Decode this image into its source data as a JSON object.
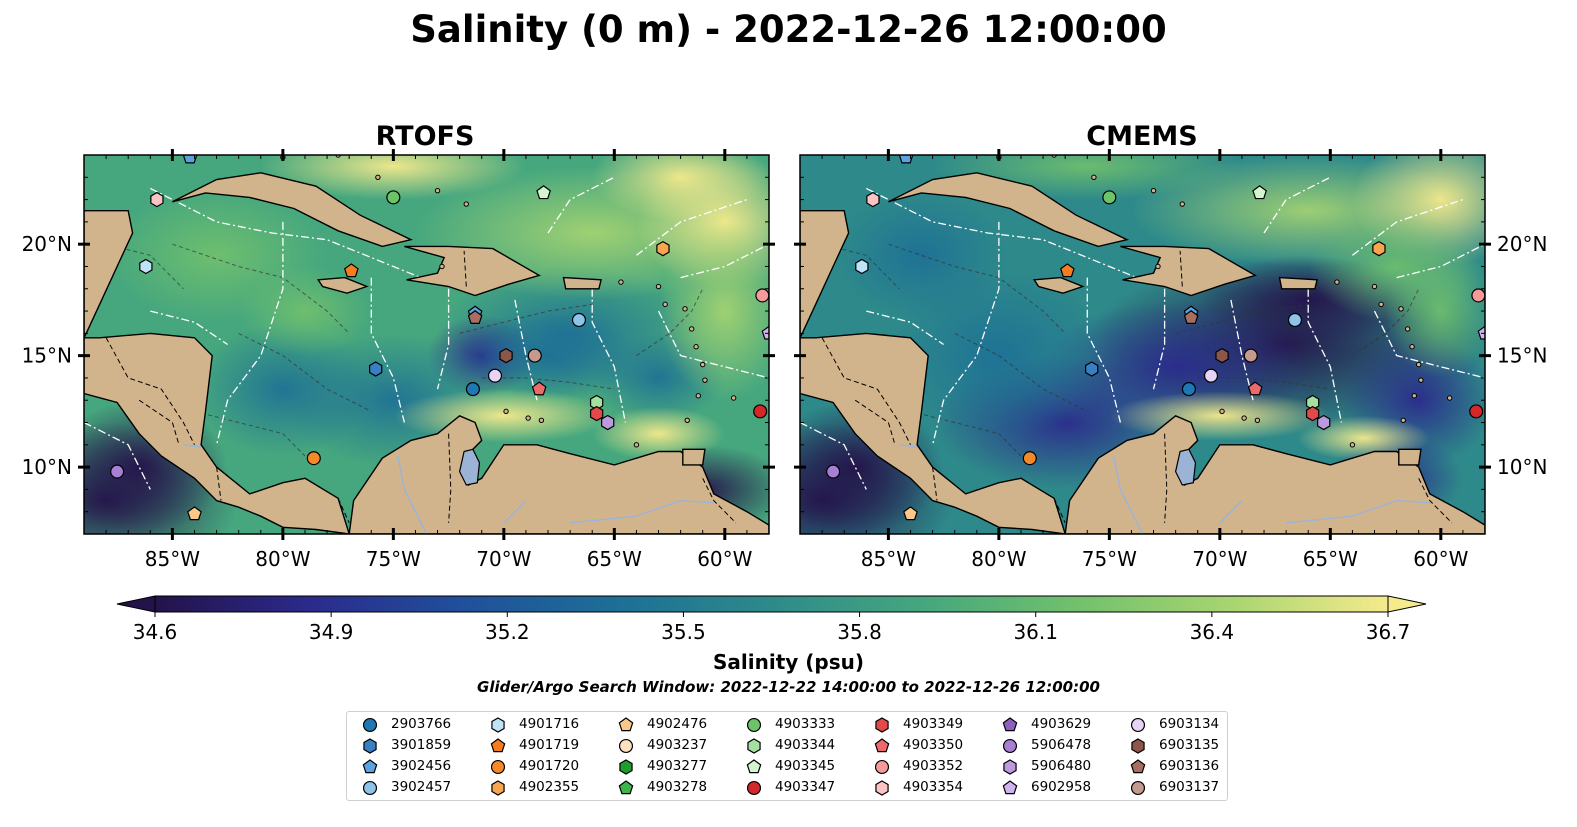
{
  "figure": {
    "title": "Salinity (0 m) - 2022-12-26 12:00:00",
    "search_window": "Glider/Argo Search Window: 2022-12-22 14:00:00 to 2022-12-26 12:00:00"
  },
  "panels": [
    {
      "title": "RTOFS",
      "model": "rtofs"
    },
    {
      "title": "CMEMS",
      "model": "cmems"
    }
  ],
  "axes": {
    "x_ticks": [
      "85°W",
      "80°W",
      "75°W",
      "70°W",
      "65°W",
      "60°W"
    ],
    "x_values": [
      -85,
      -80,
      -75,
      -70,
      -65,
      -60
    ],
    "y_ticks": [
      "20°N",
      "15°N",
      "10°N"
    ],
    "y_values": [
      20,
      15,
      10
    ],
    "lon_range": [
      -89,
      -58
    ],
    "lat_range": [
      7,
      24
    ]
  },
  "colors": {
    "land": "#d2b48c",
    "colormap": [
      "#24134a",
      "#2b2a8c",
      "#20509b",
      "#1d6f96",
      "#2e8a8a",
      "#46a77e",
      "#72c16c",
      "#a9d571",
      "#f5ea8c"
    ],
    "bathymetry_contours": "#333333",
    "eez_lines": "#ffffff",
    "rivers": "#9bb4d6"
  },
  "colorbar": {
    "label": "Salinity (psu)",
    "min": 34.6,
    "max": 36.7,
    "tick_labels": [
      "34.6",
      "34.9",
      "35.2",
      "35.5",
      "35.8",
      "36.1",
      "36.4",
      "36.7"
    ],
    "tick_values": [
      34.6,
      34.9,
      35.2,
      35.5,
      35.8,
      36.1,
      36.4,
      36.7
    ],
    "extend": "both"
  },
  "legend": {
    "columns": 7,
    "items": [
      {
        "id": "2903766",
        "marker": "circle",
        "color": "#1f77b4"
      },
      {
        "id": "3901859",
        "marker": "hexagon",
        "color": "#3a7fc4"
      },
      {
        "id": "3902456",
        "marker": "pentagon",
        "color": "#5aa2e0"
      },
      {
        "id": "3902457",
        "marker": "circle",
        "color": "#8ec3ea"
      },
      {
        "id": "4901716",
        "marker": "hexagon",
        "color": "#bfe3f7"
      },
      {
        "id": "4901719",
        "marker": "pentagon",
        "color": "#f57c1f"
      },
      {
        "id": "4901720",
        "marker": "circle",
        "color": "#f5892a"
      },
      {
        "id": "4902355",
        "marker": "hexagon",
        "color": "#f9a54f"
      },
      {
        "id": "4902476",
        "marker": "pentagon",
        "color": "#fbc88a"
      },
      {
        "id": "4903237",
        "marker": "circle",
        "color": "#fde0bf"
      },
      {
        "id": "4903277",
        "marker": "hexagon",
        "color": "#1f9e2c"
      },
      {
        "id": "4903278",
        "marker": "pentagon",
        "color": "#3cb64a"
      },
      {
        "id": "4903333",
        "marker": "circle",
        "color": "#6cc36a"
      },
      {
        "id": "4903344",
        "marker": "hexagon",
        "color": "#a5e0a0"
      },
      {
        "id": "4903345",
        "marker": "pentagon",
        "color": "#d3f5cf"
      },
      {
        "id": "4903347",
        "marker": "circle",
        "color": "#d62728"
      },
      {
        "id": "4903349",
        "marker": "hexagon",
        "color": "#e24a4a"
      },
      {
        "id": "4903350",
        "marker": "pentagon",
        "color": "#ec6a6a"
      },
      {
        "id": "4903352",
        "marker": "circle",
        "color": "#f59a9a"
      },
      {
        "id": "4903354",
        "marker": "hexagon",
        "color": "#fbc4c4"
      },
      {
        "id": "4903629",
        "marker": "pentagon",
        "color": "#8e5fbf"
      },
      {
        "id": "5906478",
        "marker": "circle",
        "color": "#a77fd3"
      },
      {
        "id": "5906480",
        "marker": "hexagon",
        "color": "#bb9ae0"
      },
      {
        "id": "6902958",
        "marker": "pentagon",
        "color": "#cfb4ee"
      },
      {
        "id": "6903134",
        "marker": "circle",
        "color": "#e7d3f6"
      },
      {
        "id": "6903135",
        "marker": "hexagon",
        "color": "#8c564b"
      },
      {
        "id": "6903136",
        "marker": "pentagon",
        "color": "#a86e62"
      },
      {
        "id": "6903137",
        "marker": "circle",
        "color": "#c49a8f"
      }
    ]
  },
  "floats": [
    {
      "id": "4903354",
      "lon": -85.7,
      "lat": 22.0
    },
    {
      "id": "3902456",
      "lon": -84.2,
      "lat": 23.9
    },
    {
      "id": "4903333",
      "lon": -75.0,
      "lat": 22.1
    },
    {
      "id": "4903345",
      "lon": -68.2,
      "lat": 22.3
    },
    {
      "id": "4902355",
      "lon": -62.8,
      "lat": 19.8
    },
    {
      "id": "4901716",
      "lon": -86.2,
      "lat": 19.0
    },
    {
      "id": "4901719",
      "lon": -76.9,
      "lat": 18.8
    },
    {
      "id": "4903352",
      "lon": -58.3,
      "lat": 17.7
    },
    {
      "id": "6902958",
      "lon": -58.0,
      "lat": 16.0
    },
    {
      "id": "3902456",
      "lon": -71.3,
      "lat": 16.9
    },
    {
      "id": "6903136",
      "lon": -71.3,
      "lat": 16.7
    },
    {
      "id": "3902457",
      "lon": -66.6,
      "lat": 16.6
    },
    {
      "id": "3901859",
      "lon": -75.8,
      "lat": 14.4
    },
    {
      "id": "6903135",
      "lon": -69.9,
      "lat": 15.0
    },
    {
      "id": "6903137",
      "lon": -68.6,
      "lat": 15.0
    },
    {
      "id": "6903134",
      "lon": -70.4,
      "lat": 14.1
    },
    {
      "id": "2903766",
      "lon": -71.4,
      "lat": 13.5
    },
    {
      "id": "4903350",
      "lon": -68.4,
      "lat": 13.5
    },
    {
      "id": "4903344",
      "lon": -65.8,
      "lat": 12.9
    },
    {
      "id": "4903349",
      "lon": -65.8,
      "lat": 12.4
    },
    {
      "id": "5906480",
      "lon": -65.3,
      "lat": 12.0
    },
    {
      "id": "4903347",
      "lon": -58.4,
      "lat": 12.5
    },
    {
      "id": "4901720",
      "lon": -78.6,
      "lat": 10.4
    },
    {
      "id": "5906478",
      "lon": -87.5,
      "lat": 9.8
    },
    {
      "id": "4902476",
      "lon": -84.0,
      "lat": 7.9
    }
  ]
}
